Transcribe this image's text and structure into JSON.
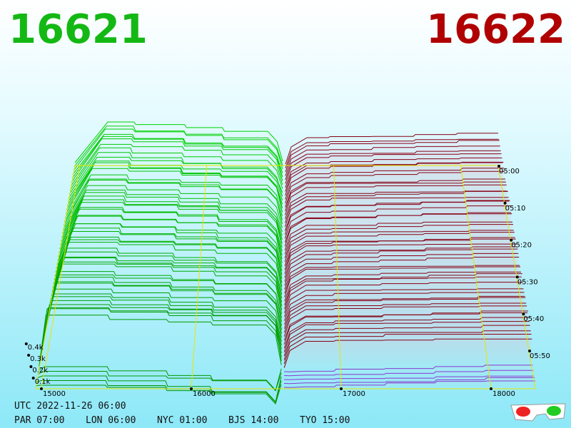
{
  "prices": {
    "bid": 16621,
    "ask": 16622
  },
  "axes": {
    "price_ticks": [
      15000,
      16000,
      17000,
      18000
    ],
    "depth_ticks": [
      {
        "value": 100,
        "label": "0.1k"
      },
      {
        "value": 200,
        "label": "0.2k"
      },
      {
        "value": 300,
        "label": "0.3k"
      },
      {
        "value": 400,
        "label": "0.4k"
      }
    ],
    "time_ticks": [
      "05:00",
      "05:10",
      "05:20",
      "05:30",
      "05:40",
      "05:50"
    ]
  },
  "clock": {
    "utc": "UTC 2022-11-26 06:00",
    "cities": [
      "PAR 07:00",
      "LON 06:00",
      "NYC 01:00",
      "BJS 14:00",
      "TYO 15:00"
    ]
  }
}
